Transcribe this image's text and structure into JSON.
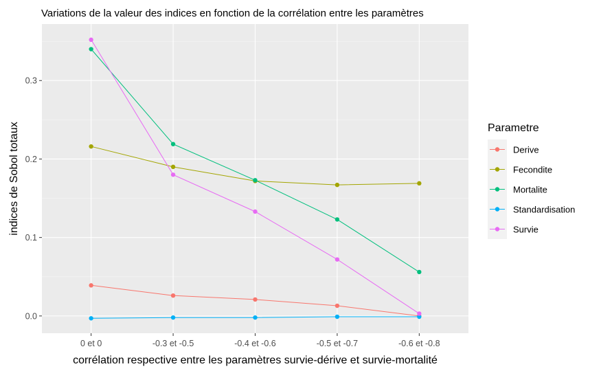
{
  "chart_data": {
    "type": "line",
    "title": "Variations de la valeur des indices en fonction de la corrélation entre les paramètres",
    "xlabel": "corrélation respective entre les paramètres survie-dérive et survie-mortalité",
    "ylabel": "indices de Sobol totaux",
    "categories": [
      "0 et 0",
      "-0.3 et -0.5",
      "-0.4 et -0.6",
      "-0.5 et -0.7",
      "-0.6 et -0.8"
    ],
    "ylim": [
      -0.022,
      0.372
    ],
    "yticks": [
      0.0,
      0.1,
      0.2,
      0.3
    ],
    "ytick_labels": [
      "0.0",
      "0.1",
      "0.2",
      "0.3"
    ],
    "grid": true,
    "background": "#ebebeb",
    "legend": {
      "title": "Parametre",
      "position": "right"
    },
    "series": [
      {
        "name": "Derive",
        "color": "#f8766d",
        "values": [
          0.039,
          0.026,
          0.021,
          0.013,
          0.0
        ]
      },
      {
        "name": "Fecondite",
        "color": "#a3a500",
        "values": [
          0.216,
          0.19,
          0.172,
          0.167,
          0.169
        ]
      },
      {
        "name": "Mortalite",
        "color": "#00bf7d",
        "values": [
          0.34,
          0.219,
          0.173,
          0.123,
          0.056
        ]
      },
      {
        "name": "Standardisation",
        "color": "#00b0f6",
        "values": [
          -0.003,
          -0.002,
          -0.002,
          -0.001,
          -0.001
        ]
      },
      {
        "name": "Survie",
        "color": "#e76bf3",
        "values": [
          0.352,
          0.18,
          0.133,
          0.072,
          0.003
        ]
      }
    ]
  }
}
